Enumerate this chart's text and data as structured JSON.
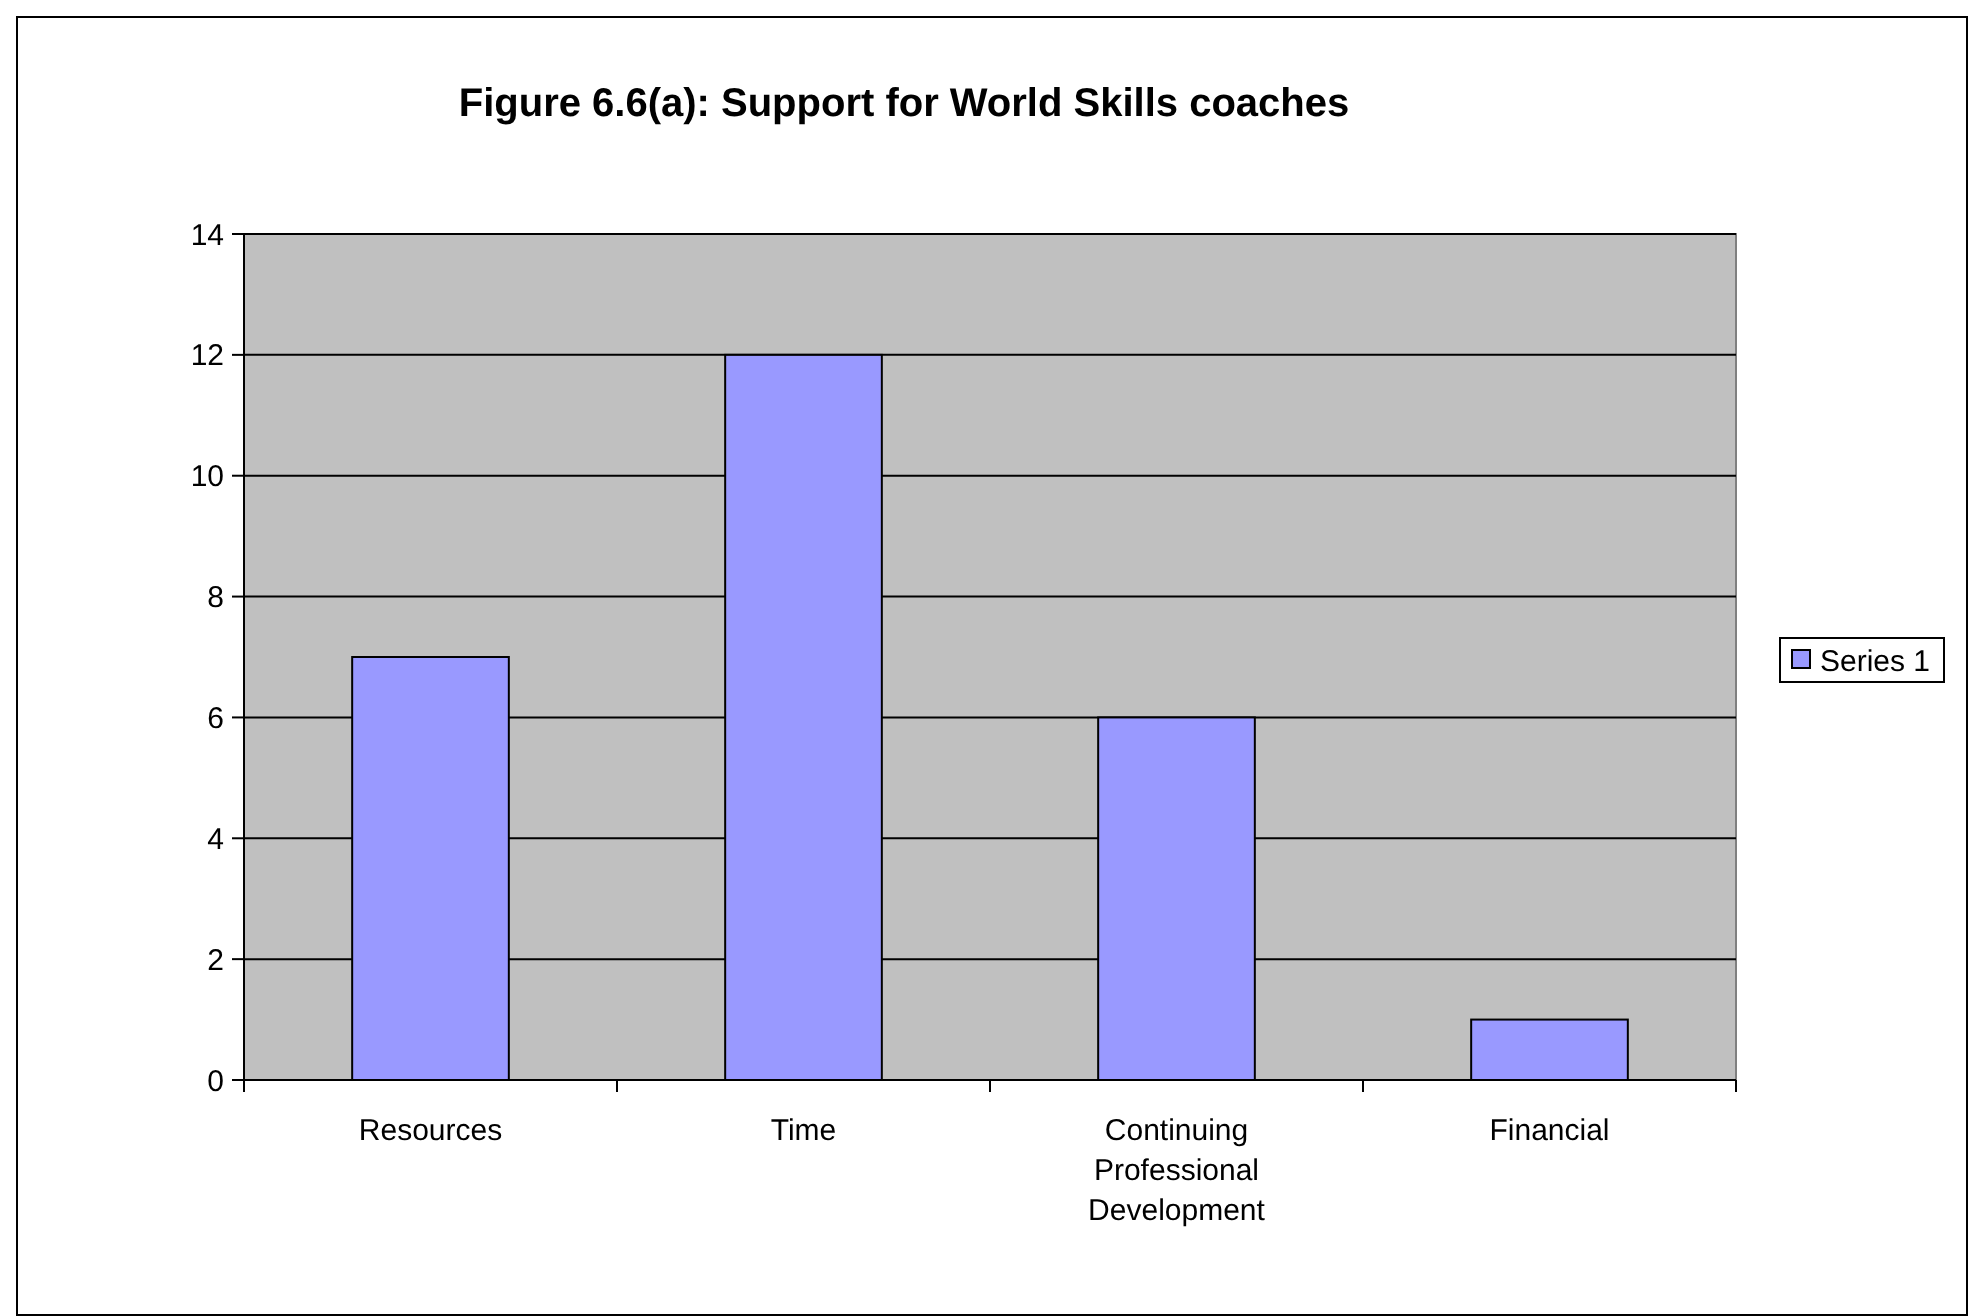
{
  "chart_data": {
    "type": "bar",
    "title": "Figure 6.6(a): Support for World Skills coaches",
    "categories": [
      "Resources",
      "Time",
      "Continuing Professional Development",
      "Financial"
    ],
    "series": [
      {
        "name": "Series 1",
        "color": "#9999ff",
        "values": [
          7,
          12,
          6,
          1
        ]
      }
    ],
    "ylim": [
      0,
      14
    ],
    "yticks": [
      0,
      2,
      4,
      6,
      8,
      10,
      12,
      14
    ],
    "grid": "y",
    "legend": "right"
  }
}
